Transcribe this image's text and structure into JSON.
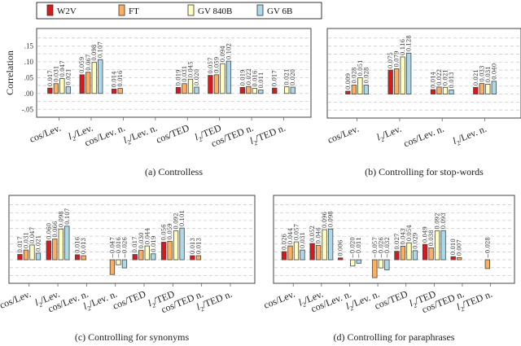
{
  "legend": {
    "placement": "top",
    "entries": [
      {
        "name": "W2V",
        "color": "#d7191c"
      },
      {
        "name": "FT",
        "color": "#fdae61"
      },
      {
        "name": "GV 840B",
        "color": "#ffffbf"
      },
      {
        "name": "GV 6B",
        "color": "#abd9e9"
      }
    ]
  },
  "chart_data": [
    {
      "type": "bar",
      "title": "(a) Controlless",
      "ylabel": "Correlation",
      "yticks": [
        ".15",
        ".10",
        ".05",
        ".00",
        "-.05"
      ],
      "ylim": [
        -0.075,
        0.205
      ],
      "grid": true,
      "categories": [
        "cos/Lev.",
        "l2/Lev.",
        "cos/Lev. n.",
        "l2/Lev. n.",
        "cos/TED",
        "l2/TED",
        "cos/TED n.",
        "l2/TED n."
      ],
      "series": [
        {
          "name": "W2V",
          "values": [
            0.017,
            0.059,
            0.014,
            null,
            0.019,
            0.057,
            0.019,
            0.017
          ]
        },
        {
          "name": "FT",
          "values": [
            0.031,
            0.067,
            0.016,
            null,
            0.031,
            0.059,
            0.022,
            null
          ]
        },
        {
          "name": "GV 840B",
          "values": [
            0.047,
            0.098,
            null,
            null,
            0.045,
            0.094,
            0.016,
            0.021
          ]
        },
        {
          "name": "GV 6B",
          "values": [
            0.021,
            0.107,
            null,
            null,
            0.02,
            0.102,
            0.011,
            0.02
          ]
        }
      ]
    },
    {
      "type": "bar",
      "title": "(b) Controlling for stop-words",
      "ylim": [
        -0.075,
        0.205
      ],
      "grid": true,
      "categories": [
        "cos/Lev.",
        "l2/Lev.",
        "cos/Lev. n.",
        "l2/Lev. n."
      ],
      "series": [
        {
          "name": "W2V",
          "values": [
            0.009,
            0.075,
            0.014,
            0.021
          ]
        },
        {
          "name": "FT",
          "values": [
            0.028,
            0.079,
            0.022,
            0.033
          ]
        },
        {
          "name": "GV 840B",
          "values": [
            0.051,
            0.116,
            0.021,
            0.031
          ]
        },
        {
          "name": "GV 6B",
          "values": [
            0.028,
            0.128,
            0.013,
            0.04
          ]
        }
      ]
    },
    {
      "type": "bar",
      "title": "(c) Controlling for synonyms",
      "ylim": [
        -0.075,
        0.205
      ],
      "grid": true,
      "categories": [
        "cos/Lev.",
        "l2/Lev.",
        "cos/Lev. n.",
        "l2/Lev. n.",
        "cos/TED",
        "l2/TED",
        "cos/TED n.",
        "l2/TED n."
      ],
      "series": [
        {
          "name": "W2V",
          "values": [
            0.017,
            0.06,
            0.016,
            null,
            0.017,
            0.056,
            0.013,
            null
          ]
        },
        {
          "name": "FT",
          "values": [
            0.031,
            0.066,
            0.013,
            -0.047,
            0.03,
            0.059,
            0.013,
            null
          ]
        },
        {
          "name": "GV 840B",
          "values": [
            0.047,
            0.098,
            null,
            -0.016,
            0.044,
            0.092,
            null,
            null
          ]
        },
        {
          "name": "GV 6B",
          "values": [
            0.021,
            0.107,
            null,
            -0.026,
            0.019,
            0.101,
            null,
            null
          ]
        }
      ]
    },
    {
      "type": "bar",
      "title": "(d) Controlling for paraphrases",
      "ylim": [
        -0.075,
        0.205
      ],
      "grid": true,
      "categories": [
        "cos/Lev.",
        "l2/Lev.",
        "cos/Lev. n.",
        "l2/Lev. n.",
        "cos/TED",
        "l2/TED",
        "cos/TED n.",
        "l2/TED n."
      ],
      "series": [
        {
          "name": "W2V",
          "values": [
            0.026,
            0.052,
            0.006,
            null,
            0.027,
            0.049,
            0.01,
            null
          ]
        },
        {
          "name": "FT",
          "values": [
            0.044,
            0.046,
            null,
            -0.057,
            0.043,
            0.038,
            0.007,
            -0.028
          ]
        },
        {
          "name": "GV 840B",
          "values": [
            0.057,
            0.096,
            -0.02,
            -0.026,
            0.054,
            0.092,
            null,
            null
          ]
        },
        {
          "name": "GV 6B",
          "values": [
            0.031,
            0.098,
            -0.011,
            -0.032,
            0.029,
            0.093,
            null,
            null
          ]
        }
      ]
    }
  ]
}
